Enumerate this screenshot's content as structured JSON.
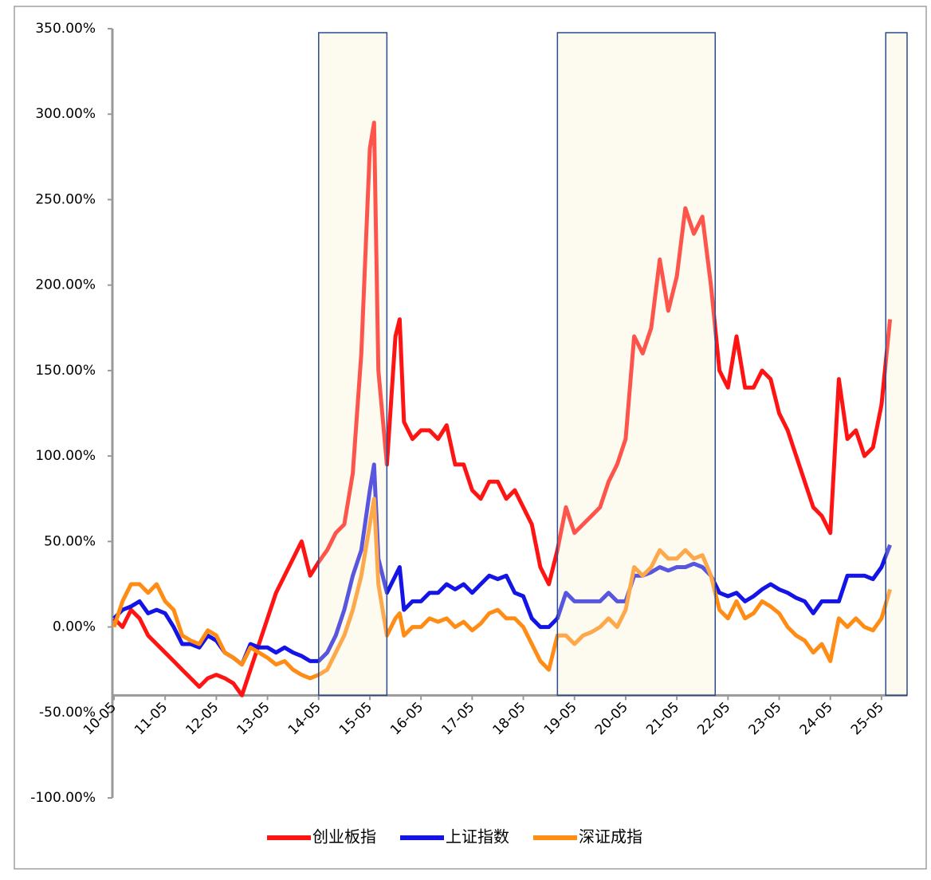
{
  "chart_data": {
    "type": "line",
    "x": [
      "10-05",
      "10-07",
      "10-09",
      "10-11",
      "11-01",
      "11-03",
      "11-05",
      "11-07",
      "11-09",
      "11-11",
      "12-01",
      "12-03",
      "12-05",
      "12-07",
      "12-09",
      "12-11",
      "13-01",
      "13-03",
      "13-05",
      "13-07",
      "13-09",
      "13-11",
      "14-01",
      "14-03",
      "14-05",
      "14-07",
      "14-09",
      "14-11",
      "15-01",
      "15-03",
      "15-05",
      "15-06",
      "15-07",
      "15-09",
      "15-11",
      "15-12",
      "16-01",
      "16-03",
      "16-05",
      "16-07",
      "16-09",
      "16-11",
      "17-01",
      "17-03",
      "17-05",
      "17-07",
      "17-09",
      "17-11",
      "18-01",
      "18-03",
      "18-05",
      "18-07",
      "18-09",
      "18-11",
      "19-01",
      "19-03",
      "19-05",
      "19-07",
      "19-09",
      "19-11",
      "20-01",
      "20-03",
      "20-05",
      "20-07",
      "20-09",
      "20-11",
      "21-01",
      "21-03",
      "21-05",
      "21-07",
      "21-09",
      "21-11",
      "22-01",
      "22-03",
      "22-05",
      "22-07",
      "22-09",
      "22-11",
      "23-01",
      "23-03",
      "23-05",
      "23-07",
      "23-09",
      "23-11",
      "24-01",
      "24-03",
      "24-05",
      "24-07",
      "24-09",
      "24-11",
      "25-01",
      "25-03",
      "25-05",
      "25-07"
    ],
    "series": [
      {
        "name": "创业板指",
        "color": "#ff1414",
        "values": [
          5,
          0,
          10,
          5,
          -5,
          -10,
          -15,
          -20,
          -25,
          -30,
          -35,
          -30,
          -28,
          -30,
          -33,
          -40,
          -25,
          -10,
          5,
          20,
          30,
          40,
          50,
          30,
          38,
          45,
          55,
          60,
          90,
          160,
          280,
          295,
          150,
          95,
          170,
          180,
          120,
          110,
          115,
          115,
          110,
          118,
          95,
          95,
          80,
          75,
          85,
          85,
          75,
          80,
          70,
          60,
          35,
          25,
          45,
          70,
          55,
          60,
          65,
          70,
          85,
          95,
          110,
          170,
          160,
          175,
          215,
          185,
          205,
          245,
          230,
          240,
          200,
          150,
          140,
          170,
          140,
          140,
          150,
          145,
          125,
          115,
          100,
          85,
          70,
          65,
          55,
          145,
          110,
          115,
          100,
          105,
          130,
          180
        ]
      },
      {
        "name": "上证指数",
        "color": "#1414e6",
        "values": [
          5,
          10,
          12,
          15,
          8,
          10,
          8,
          0,
          -10,
          -10,
          -12,
          -5,
          -8,
          -15,
          -18,
          -22,
          -10,
          -12,
          -12,
          -15,
          -12,
          -15,
          -17,
          -20,
          -20,
          -15,
          -5,
          10,
          30,
          45,
          80,
          95,
          40,
          20,
          30,
          35,
          10,
          15,
          15,
          20,
          20,
          25,
          22,
          25,
          20,
          25,
          30,
          28,
          30,
          20,
          18,
          5,
          0,
          0,
          5,
          20,
          15,
          15,
          15,
          15,
          20,
          15,
          15,
          30,
          30,
          32,
          35,
          33,
          35,
          35,
          37,
          35,
          30,
          20,
          18,
          20,
          15,
          18,
          22,
          25,
          22,
          20,
          17,
          15,
          8,
          15,
          15,
          15,
          30,
          30,
          30,
          28,
          35,
          48
        ]
      },
      {
        "name": "深证成指",
        "color": "#ff8c14",
        "values": [
          0,
          15,
          25,
          25,
          20,
          25,
          15,
          10,
          -5,
          -8,
          -10,
          -2,
          -5,
          -15,
          -18,
          -22,
          -12,
          -15,
          -18,
          -22,
          -20,
          -25,
          -28,
          -30,
          -28,
          -25,
          -15,
          -5,
          10,
          30,
          60,
          75,
          25,
          -5,
          5,
          8,
          -5,
          0,
          0,
          5,
          3,
          5,
          0,
          3,
          -2,
          2,
          8,
          10,
          5,
          5,
          0,
          -10,
          -20,
          -25,
          -5,
          -5,
          -10,
          -5,
          -3,
          0,
          5,
          0,
          10,
          35,
          30,
          35,
          45,
          40,
          40,
          45,
          40,
          42,
          30,
          10,
          5,
          15,
          5,
          8,
          15,
          12,
          8,
          0,
          -5,
          -8,
          -15,
          -10,
          -20,
          5,
          0,
          5,
          0,
          -2,
          5,
          22
        ]
      }
    ],
    "xlim": [
      "10-05",
      "25-11"
    ],
    "xticks": [
      "10-05",
      "11-05",
      "12-05",
      "13-05",
      "14-05",
      "15-05",
      "16-05",
      "17-05",
      "18-05",
      "19-05",
      "20-05",
      "21-05",
      "22-05",
      "23-05",
      "24-05",
      "25-05"
    ],
    "ylim": [
      -100,
      350
    ],
    "yticks": [
      {
        "value": -100,
        "label": "-100.00%"
      },
      {
        "value": -50,
        "label": "-50.00%"
      },
      {
        "value": 0,
        "label": "0.00%"
      },
      {
        "value": 50,
        "label": "50.00%"
      },
      {
        "value": 100,
        "label": "100.00%"
      },
      {
        "value": 150,
        "label": "150.00%"
      },
      {
        "value": 200,
        "label": "200.00%"
      },
      {
        "value": 250,
        "label": "250.00%"
      },
      {
        "value": 300,
        "label": "300.00%"
      },
      {
        "value": 350,
        "label": "350.00%"
      }
    ],
    "x_axis_at": -40,
    "highlights": [
      [
        "14-05",
        "15-09"
      ],
      [
        "19-01",
        "22-02"
      ],
      [
        "25-06",
        "25-11"
      ]
    ],
    "legend": "bottom"
  }
}
